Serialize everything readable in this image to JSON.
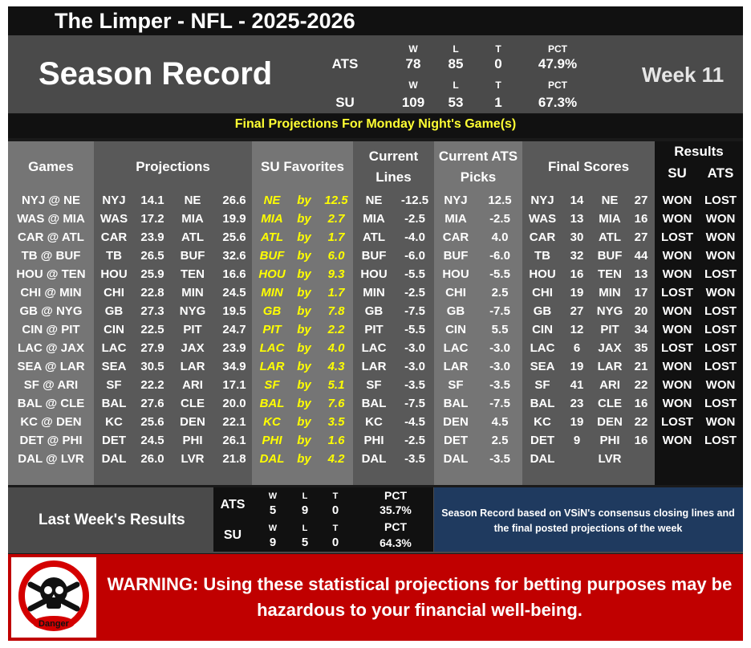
{
  "title": "The Limper - NFL - 2025-2026",
  "season_record_label": "Season Record",
  "week_label": "Week 11",
  "season_record": {
    "ats": {
      "label": "ATS",
      "w": "78",
      "l": "85",
      "t": "0",
      "pct": "47.9%"
    },
    "su": {
      "label": "SU",
      "w": "109",
      "l": "53",
      "t": "1",
      "pct": "67.3%"
    },
    "col_w": "W",
    "col_l": "L",
    "col_t": "T",
    "col_pct": "PCT"
  },
  "projections_title": "Final Projections For Monday Night's Game(s)",
  "headers": {
    "games": "Games",
    "projections": "Projections",
    "su_favorites": "SU Favorites",
    "current_lines_1": "Current",
    "current_lines_2": "Lines",
    "current_ats_1": "Current ATS",
    "current_ats_2": "Picks",
    "final_scores": "Final Scores",
    "results": "Results",
    "results_su": "SU",
    "results_ats": "ATS"
  },
  "by_word": "by",
  "rows": [
    {
      "game": "NYJ @ NE",
      "p1": "NYJ",
      "s1": "14.1",
      "p2": "NE",
      "s2": "26.6",
      "fav": "NE",
      "margin": "12.5",
      "lt": "NE",
      "lv": "-12.5",
      "at": "NYJ",
      "av": "12.5",
      "f1": "NYJ",
      "fs1": "14",
      "f2": "NE",
      "fs2": "27",
      "su": "WON",
      "ats": "LOST"
    },
    {
      "game": "WAS @ MIA",
      "p1": "WAS",
      "s1": "17.2",
      "p2": "MIA",
      "s2": "19.9",
      "fav": "MIA",
      "margin": "2.7",
      "lt": "MIA",
      "lv": "-2.5",
      "at": "MIA",
      "av": "-2.5",
      "f1": "WAS",
      "fs1": "13",
      "f2": "MIA",
      "fs2": "16",
      "su": "WON",
      "ats": "WON"
    },
    {
      "game": "CAR @ ATL",
      "p1": "CAR",
      "s1": "23.9",
      "p2": "ATL",
      "s2": "25.6",
      "fav": "ATL",
      "margin": "1.7",
      "lt": "ATL",
      "lv": "-4.0",
      "at": "CAR",
      "av": "4.0",
      "f1": "CAR",
      "fs1": "30",
      "f2": "ATL",
      "fs2": "27",
      "su": "LOST",
      "ats": "WON"
    },
    {
      "game": "TB @ BUF",
      "p1": "TB",
      "s1": "26.5",
      "p2": "BUF",
      "s2": "32.6",
      "fav": "BUF",
      "margin": "6.0",
      "lt": "BUF",
      "lv": "-6.0",
      "at": "BUF",
      "av": "-6.0",
      "f1": "TB",
      "fs1": "32",
      "f2": "BUF",
      "fs2": "44",
      "su": "WON",
      "ats": "WON"
    },
    {
      "game": "HOU @ TEN",
      "p1": "HOU",
      "s1": "25.9",
      "p2": "TEN",
      "s2": "16.6",
      "fav": "HOU",
      "margin": "9.3",
      "lt": "HOU",
      "lv": "-5.5",
      "at": "HOU",
      "av": "-5.5",
      "f1": "HOU",
      "fs1": "16",
      "f2": "TEN",
      "fs2": "13",
      "su": "WON",
      "ats": "LOST"
    },
    {
      "game": "CHI @ MIN",
      "p1": "CHI",
      "s1": "22.8",
      "p2": "MIN",
      "s2": "24.5",
      "fav": "MIN",
      "margin": "1.7",
      "lt": "MIN",
      "lv": "-2.5",
      "at": "CHI",
      "av": "2.5",
      "f1": "CHI",
      "fs1": "19",
      "f2": "MIN",
      "fs2": "17",
      "su": "LOST",
      "ats": "WON"
    },
    {
      "game": "GB @ NYG",
      "p1": "GB",
      "s1": "27.3",
      "p2": "NYG",
      "s2": "19.5",
      "fav": "GB",
      "margin": "7.8",
      "lt": "GB",
      "lv": "-7.5",
      "at": "GB",
      "av": "-7.5",
      "f1": "GB",
      "fs1": "27",
      "f2": "NYG",
      "fs2": "20",
      "su": "WON",
      "ats": "LOST"
    },
    {
      "game": "CIN @ PIT",
      "p1": "CIN",
      "s1": "22.5",
      "p2": "PIT",
      "s2": "24.7",
      "fav": "PIT",
      "margin": "2.2",
      "lt": "PIT",
      "lv": "-5.5",
      "at": "CIN",
      "av": "5.5",
      "f1": "CIN",
      "fs1": "12",
      "f2": "PIT",
      "fs2": "34",
      "su": "WON",
      "ats": "LOST"
    },
    {
      "game": "LAC @ JAX",
      "p1": "LAC",
      "s1": "27.9",
      "p2": "JAX",
      "s2": "23.9",
      "fav": "LAC",
      "margin": "4.0",
      "lt": "LAC",
      "lv": "-3.0",
      "at": "LAC",
      "av": "-3.0",
      "f1": "LAC",
      "fs1": "6",
      "f2": "JAX",
      "fs2": "35",
      "su": "LOST",
      "ats": "LOST"
    },
    {
      "game": "SEA @ LAR",
      "p1": "SEA",
      "s1": "30.5",
      "p2": "LAR",
      "s2": "34.9",
      "fav": "LAR",
      "margin": "4.3",
      "lt": "LAR",
      "lv": "-3.0",
      "at": "LAR",
      "av": "-3.0",
      "f1": "SEA",
      "fs1": "19",
      "f2": "LAR",
      "fs2": "21",
      "su": "WON",
      "ats": "LOST"
    },
    {
      "game": "SF @ ARI",
      "p1": "SF",
      "s1": "22.2",
      "p2": "ARI",
      "s2": "17.1",
      "fav": "SF",
      "margin": "5.1",
      "lt": "SF",
      "lv": "-3.5",
      "at": "SF",
      "av": "-3.5",
      "f1": "SF",
      "fs1": "41",
      "f2": "ARI",
      "fs2": "22",
      "su": "WON",
      "ats": "WON"
    },
    {
      "game": "BAL @ CLE",
      "p1": "BAL",
      "s1": "27.6",
      "p2": "CLE",
      "s2": "20.0",
      "fav": "BAL",
      "margin": "7.6",
      "lt": "BAL",
      "lv": "-7.5",
      "at": "BAL",
      "av": "-7.5",
      "f1": "BAL",
      "fs1": "23",
      "f2": "CLE",
      "fs2": "16",
      "su": "WON",
      "ats": "LOST"
    },
    {
      "game": "KC @ DEN",
      "p1": "KC",
      "s1": "25.6",
      "p2": "DEN",
      "s2": "22.1",
      "fav": "KC",
      "margin": "3.5",
      "lt": "KC",
      "lv": "-4.5",
      "at": "DEN",
      "av": "4.5",
      "f1": "KC",
      "fs1": "19",
      "f2": "DEN",
      "fs2": "22",
      "su": "LOST",
      "ats": "WON"
    },
    {
      "game": "DET @ PHI",
      "p1": "DET",
      "s1": "24.5",
      "p2": "PHI",
      "s2": "26.1",
      "fav": "PHI",
      "margin": "1.6",
      "lt": "PHI",
      "lv": "-2.5",
      "at": "DET",
      "av": "2.5",
      "f1": "DET",
      "fs1": "9",
      "f2": "PHI",
      "fs2": "16",
      "su": "WON",
      "ats": "LOST"
    },
    {
      "game": "DAL @ LVR",
      "p1": "DAL",
      "s1": "26.0",
      "p2": "LVR",
      "s2": "21.8",
      "fav": "DAL",
      "margin": "4.2",
      "lt": "DAL",
      "lv": "-3.5",
      "at": "DAL",
      "av": "-3.5",
      "f1": "DAL",
      "fs1": "",
      "f2": "LVR",
      "fs2": "",
      "su": "",
      "ats": ""
    }
  ],
  "last_week": {
    "title": "Last Week's Results",
    "ats": {
      "label": "ATS",
      "w": "5",
      "l": "9",
      "t": "0",
      "pct": "35.7%"
    },
    "su": {
      "label": "SU",
      "w": "9",
      "l": "5",
      "t": "0",
      "pct": "64.3%"
    },
    "col_w": "W",
    "col_l": "L",
    "col_t": "T",
    "col_pct": "PCT"
  },
  "note": "Season Record based on VSiN's consensus closing lines and the final posted projections of the week",
  "danger_label": "Danger",
  "danger_icon": "skull-crossbones-icon",
  "warning": "WARNING: Using these statistical projections for betting purposes may be hazardous to your financial well-being.",
  "colors": {
    "favorite": "#ffff00",
    "warning_bg": "#c00000",
    "note_bg": "#1f3a5f"
  }
}
